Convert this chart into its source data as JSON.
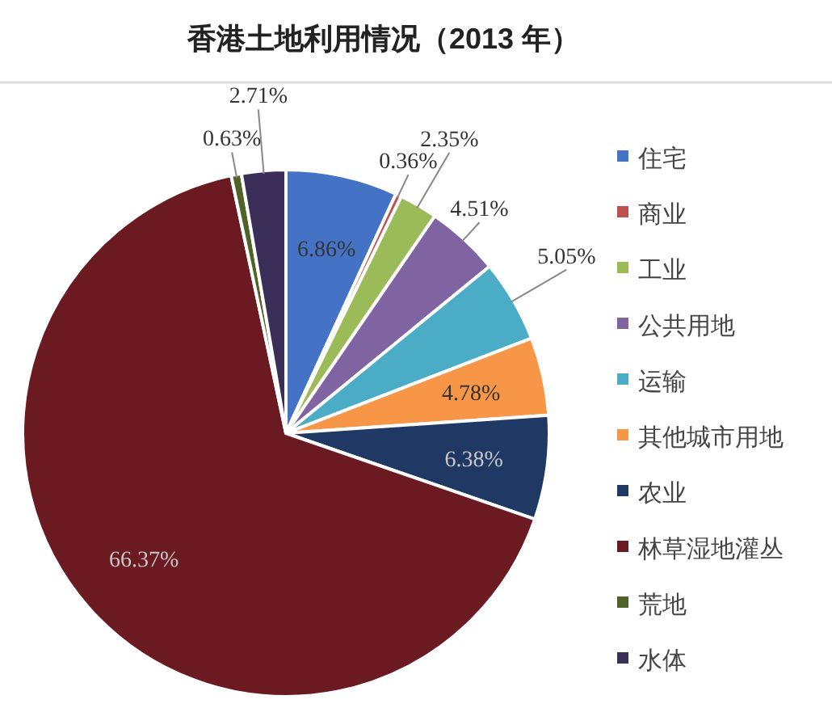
{
  "chart_data": {
    "type": "pie",
    "title": "香港土地利用情况（2013 年）",
    "categories": [
      "住宅",
      "商业",
      "工业",
      "公共用地",
      "运输",
      "其他城市用地",
      "农业",
      "林草湿地灌丛",
      "荒地",
      "水体"
    ],
    "values": [
      6.86,
      0.36,
      2.35,
      4.51,
      5.05,
      4.78,
      6.38,
      66.37,
      0.63,
      2.71
    ],
    "colors": [
      "#4472c4",
      "#c0504d",
      "#9bbb59",
      "#8064a2",
      "#4bacc6",
      "#f79646",
      "#1f3864",
      "#6b1a22",
      "#4f6228",
      "#3b2e58"
    ],
    "value_labels": [
      "6.86%",
      "0.36%",
      "2.35%",
      "4.51%",
      "5.05%",
      "4.78%",
      "6.38%",
      "66.37%",
      "0.63%",
      "2.71%"
    ],
    "legend": "right"
  }
}
